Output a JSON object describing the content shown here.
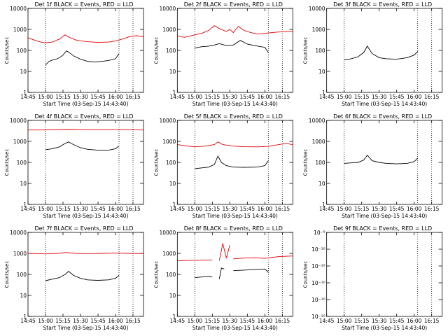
{
  "common": {
    "xlabel": "Start Time (03-Sep-15 14:43:40)",
    "ylabel": "Counts/sec",
    "xticks": [
      "14:45",
      "15:00",
      "15:15",
      "15:30",
      "15:45",
      "16:00",
      "16:15"
    ],
    "xtick_values": [
      14.75,
      15.0,
      15.25,
      15.5,
      15.75,
      16.0,
      16.25
    ],
    "xlim": [
      14.75,
      16.4
    ],
    "event_marker_times": [
      15.0,
      16.05,
      16.25
    ],
    "colors": {
      "events": "#000000",
      "lld": "#e00000"
    }
  },
  "chart_data": [
    {
      "type": "line",
      "title": "Det 1f BLACK = Events, RED = LLD",
      "yscale": "log",
      "ylim": [
        1,
        10000
      ],
      "ytick_labels": [
        "1",
        "10",
        "100",
        "1000",
        "10000"
      ],
      "series": [
        {
          "name": "Events",
          "color": "#000000",
          "segments": [
            {
              "x": [
                15.0,
                15.05,
                15.1,
                15.15,
                15.2,
                15.25,
                15.28,
                15.3,
                15.35,
                15.4,
                15.5,
                15.6,
                15.7,
                15.8,
                15.9,
                16.0,
                16.05
              ],
              "y": [
                20,
                30,
                35,
                38,
                45,
                60,
                80,
                95,
                75,
                55,
                38,
                30,
                28,
                30,
                33,
                40,
                70
              ]
            }
          ]
        },
        {
          "name": "LLD",
          "color": "#e00000",
          "segments": [
            {
              "x": [
                14.75,
                14.85,
                14.95,
                15.0,
                15.1,
                15.2,
                15.28,
                15.35,
                15.45,
                15.6,
                15.75,
                15.9,
                16.0,
                16.1,
                16.2,
                16.3,
                16.4
              ],
              "y": [
                400,
                300,
                240,
                230,
                250,
                350,
                550,
                400,
                300,
                260,
                240,
                250,
                280,
                350,
                450,
                500,
                450
              ]
            }
          ]
        }
      ]
    },
    {
      "type": "line",
      "title": "Det 2f BLACK = Events, RED = LLD",
      "yscale": "log",
      "ylim": [
        1,
        10000
      ],
      "ytick_labels": [
        "1",
        "10",
        "100",
        "1000",
        "10000"
      ],
      "series": [
        {
          "name": "Events",
          "color": "#000000",
          "segments": [
            {
              "x": [
                15.0,
                15.1,
                15.2,
                15.28,
                15.35,
                15.45,
                15.55,
                15.65,
                15.75,
                15.9,
                16.0,
                16.05
              ],
              "y": [
                130,
                150,
                160,
                180,
                210,
                170,
                180,
                300,
                200,
                160,
                140,
                80
              ]
            }
          ]
        },
        {
          "name": "LLD",
          "color": "#e00000",
          "segments": [
            {
              "x": [
                14.75,
                14.85,
                15.0,
                15.1,
                15.2,
                15.28,
                15.35,
                15.45,
                15.5,
                15.55,
                15.62,
                15.7,
                15.8,
                15.9,
                16.0,
                16.1,
                16.2,
                16.3,
                16.4
              ],
              "y": [
                500,
                420,
                550,
                650,
                900,
                1500,
                1100,
                800,
                1000,
                700,
                1400,
                900,
                700,
                600,
                650,
                700,
                750,
                780,
                800
              ]
            }
          ]
        }
      ]
    },
    {
      "type": "line",
      "title": "Det 3f BLACK = Events, RED = LLD",
      "yscale": "log",
      "ylim": [
        1,
        10000
      ],
      "ytick_labels": [
        "1",
        "10",
        "100",
        "1000",
        "10000"
      ],
      "series": [
        {
          "name": "Events",
          "color": "#000000",
          "segments": [
            {
              "x": [
                15.0,
                15.1,
                15.2,
                15.28,
                15.33,
                15.4,
                15.5,
                15.6,
                15.75,
                15.9,
                16.0,
                16.05
              ],
              "y": [
                35,
                40,
                50,
                80,
                160,
                70,
                45,
                40,
                38,
                45,
                60,
                90
              ]
            }
          ]
        },
        {
          "name": "LLD",
          "color": "#e00000",
          "segments": []
        }
      ]
    },
    {
      "type": "line",
      "title": "Det 4f BLACK = Events, RED = LLD",
      "yscale": "log",
      "ylim": [
        1,
        10000
      ],
      "ytick_labels": [
        "1",
        "10",
        "100",
        "1000",
        "10000"
      ],
      "series": [
        {
          "name": "Events",
          "color": "#000000",
          "segments": [
            {
              "x": [
                15.0,
                15.1,
                15.2,
                15.28,
                15.33,
                15.4,
                15.5,
                15.6,
                15.75,
                15.9,
                16.0,
                16.05
              ],
              "y": [
                400,
                450,
                550,
                800,
                950,
                700,
                500,
                420,
                380,
                380,
                450,
                600
              ]
            }
          ]
        },
        {
          "name": "LLD",
          "color": "#e00000",
          "segments": [
            {
              "x": [
                14.75,
                15.0,
                15.3,
                15.6,
                16.0,
                16.4
              ],
              "y": [
                3500,
                3500,
                3700,
                3600,
                3600,
                3500
              ]
            }
          ]
        }
      ]
    },
    {
      "type": "line",
      "title": "Det 5f BLACK = Events, RED = LLD",
      "yscale": "log",
      "ylim": [
        1,
        10000
      ],
      "ytick_labels": [
        "1",
        "10",
        "100",
        "1000",
        "10000"
      ],
      "series": [
        {
          "name": "Events",
          "color": "#000000",
          "segments": [
            {
              "x": [
                15.0,
                15.1,
                15.2,
                15.28,
                15.33,
                15.38,
                15.45,
                15.55,
                15.7,
                15.9,
                16.0,
                16.05
              ],
              "y": [
                50,
                55,
                60,
                80,
                200,
                100,
                70,
                60,
                58,
                60,
                70,
                120
              ]
            }
          ]
        },
        {
          "name": "LLD",
          "color": "#e00000",
          "segments": [
            {
              "x": [
                14.75,
                14.9,
                15.0,
                15.15,
                15.28,
                15.33,
                15.4,
                15.55,
                15.7,
                15.9,
                16.05,
                16.2,
                16.3,
                16.4
              ],
              "y": [
                700,
                600,
                550,
                600,
                700,
                950,
                700,
                600,
                560,
                550,
                580,
                700,
                800,
                700
              ]
            }
          ]
        }
      ]
    },
    {
      "type": "line",
      "title": "Det 6f BLACK = Events, RED = LLD",
      "yscale": "log",
      "ylim": [
        1,
        10000
      ],
      "ytick_labels": [
        "1",
        "10",
        "100",
        "1000",
        "10000"
      ],
      "series": [
        {
          "name": "Events",
          "color": "#000000",
          "segments": [
            {
              "x": [
                15.0,
                15.1,
                15.2,
                15.28,
                15.33,
                15.4,
                15.5,
                15.6,
                15.75,
                15.9,
                16.0,
                16.05
              ],
              "y": [
                90,
                95,
                100,
                130,
                220,
                120,
                100,
                90,
                85,
                90,
                110,
                160
              ]
            }
          ]
        },
        {
          "name": "LLD",
          "color": "#e00000",
          "segments": []
        }
      ]
    },
    {
      "type": "line",
      "title": "Det 7f BLACK = Events, RED = LLD",
      "yscale": "log",
      "ylim": [
        1,
        10000
      ],
      "ytick_labels": [
        "1",
        "10",
        "100",
        "1000",
        "10000"
      ],
      "series": [
        {
          "name": "Events",
          "color": "#000000",
          "segments": [
            {
              "x": [
                15.0,
                15.1,
                15.2,
                15.28,
                15.33,
                15.4,
                15.5,
                15.6,
                15.75,
                15.9,
                16.0,
                16.05
              ],
              "y": [
                50,
                60,
                70,
                100,
                140,
                90,
                65,
                55,
                52,
                55,
                65,
                90
              ]
            }
          ]
        },
        {
          "name": "LLD",
          "color": "#e00000",
          "segments": [
            {
              "x": [
                14.75,
                15.0,
                15.15,
                15.3,
                15.45,
                15.6,
                15.8,
                16.0,
                16.2,
                16.4
              ],
              "y": [
                1000,
                950,
                1000,
                1100,
                1000,
                980,
                1000,
                1050,
                1000,
                980
              ]
            }
          ]
        }
      ]
    },
    {
      "type": "line",
      "title": "Det 8f BLACK = Events, RED = LLD",
      "yscale": "log",
      "ylim": [
        1,
        10000
      ],
      "ytick_labels": [
        "1",
        "10",
        "100",
        "1000",
        "10000"
      ],
      "series": [
        {
          "name": "Events",
          "color": "#000000",
          "segments": [
            {
              "x": [
                15.0,
                15.1,
                15.2,
                15.25
              ],
              "y": [
                70,
                75,
                80,
                75
              ]
            },
            {
              "x": [
                15.35,
                15.38,
                15.42
              ],
              "y": [
                60,
                200,
                180
              ]
            },
            {
              "x": [
                15.55,
                15.7,
                15.85,
                16.0,
                16.05
              ],
              "y": [
                150,
                160,
                170,
                180,
                130
              ]
            }
          ]
        },
        {
          "name": "LLD",
          "color": "#e00000",
          "segments": [
            {
              "x": [
                14.75,
                14.9,
                15.05,
                15.2,
                15.25
              ],
              "y": [
                450,
                460,
                470,
                480,
                480
              ]
            },
            {
              "x": [
                15.35,
                15.4,
                15.45,
                15.5
              ],
              "y": [
                450,
                3000,
                600,
                2500
              ]
            },
            {
              "x": [
                15.55,
                15.7,
                15.85,
                16.0,
                16.2,
                16.4
              ],
              "y": [
                550,
                600,
                620,
                580,
                700,
                750
              ]
            }
          ]
        }
      ]
    },
    {
      "type": "line",
      "title": "Det 9f BLACK = Events, RED = LLD",
      "yscale": "log",
      "ylim": [
        1e-10,
        1e-09
      ],
      "ytick_labels": [
        "10⁻¹⁰",
        "10⁻¹⁰",
        "10⁻¹⁰",
        "10⁻¹⁰",
        "10⁻¹⁰",
        "10⁻⁹"
      ],
      "series": [
        {
          "name": "Events",
          "color": "#000000",
          "segments": []
        },
        {
          "name": "LLD",
          "color": "#e00000",
          "segments": []
        }
      ]
    }
  ]
}
